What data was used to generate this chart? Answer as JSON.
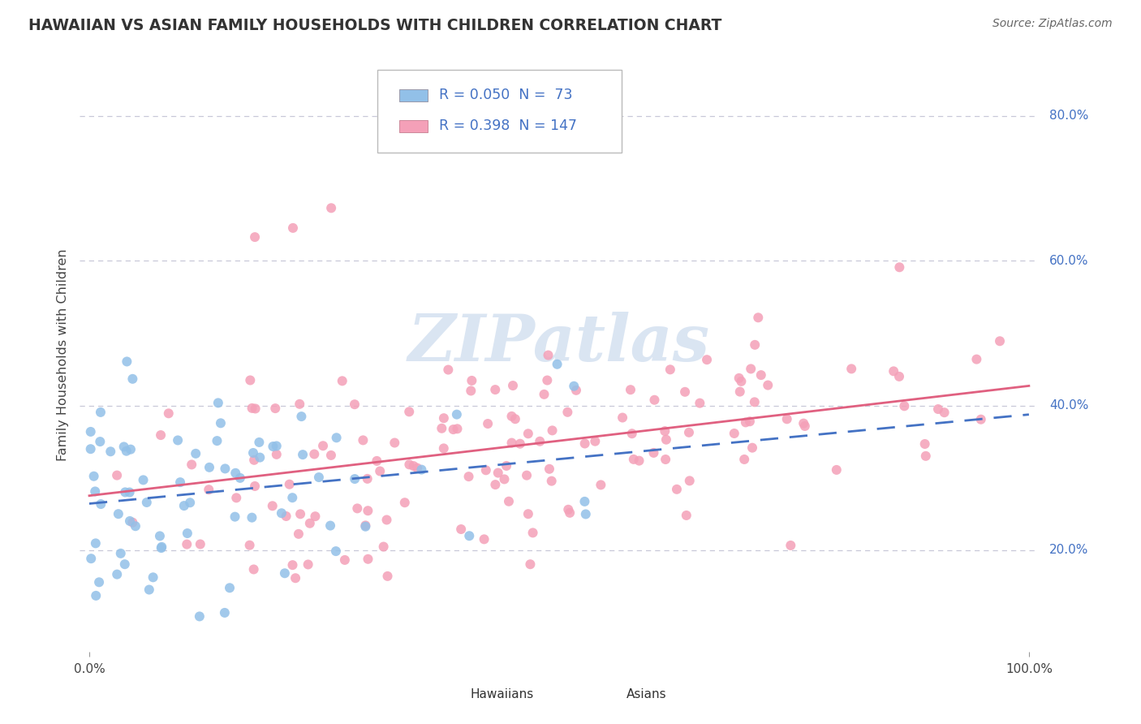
{
  "title": "HAWAIIAN VS ASIAN FAMILY HOUSEHOLDS WITH CHILDREN CORRELATION CHART",
  "source": "Source: ZipAtlas.com",
  "ylabel": "Family Households with Children",
  "watermark": "ZIPatlas",
  "color_blue": "#92C0E8",
  "color_pink": "#F4A0B8",
  "color_line_blue": "#4472C4",
  "color_line_pink": "#E06080",
  "color_text_blue": "#4472C4",
  "background_color": "#FFFFFF",
  "grid_color": "#C8C8D8",
  "ytick_vals": [
    0.2,
    0.4,
    0.6,
    0.8
  ],
  "ytick_labels": [
    "20.0%",
    "40.0%",
    "60.0%",
    "80.0%"
  ],
  "haw_seed": 101,
  "asi_seed": 202,
  "legend_text_r1": "R = 0.050  N =  73",
  "legend_text_r2": "R = 0.398  N = 147"
}
